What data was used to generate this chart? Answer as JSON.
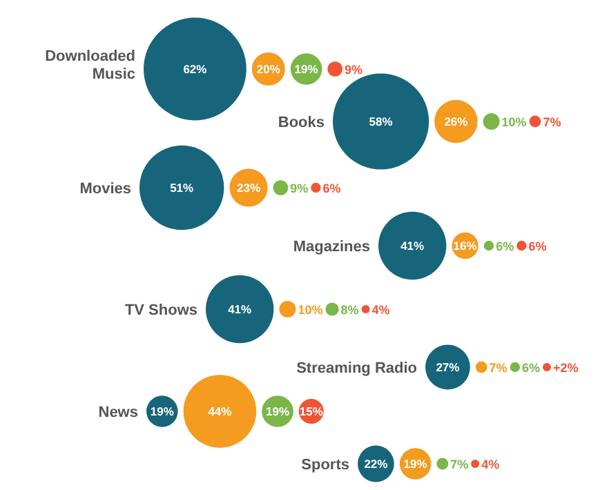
{
  "chart_data": {
    "type": "other",
    "categories": [
      "Downloaded Music",
      "Books",
      "Movies",
      "Magazines",
      "TV Shows",
      "Streaming Radio",
      "News",
      "Sports"
    ],
    "series": [
      {
        "color": "#17657a",
        "values": [
          62,
          58,
          51,
          41,
          41,
          27,
          19,
          22
        ],
        "value_labels": [
          "62%",
          "58%",
          "51%",
          "41%",
          "41%",
          "27%",
          "19%",
          "22%"
        ]
      },
      {
        "color": "#f49b20",
        "values": [
          20,
          26,
          23,
          16,
          10,
          7,
          44,
          19
        ],
        "value_labels": [
          "20%",
          "26%",
          "23%",
          "16%",
          "10%",
          "7%",
          "44%",
          "19%"
        ]
      },
      {
        "color": "#7ab648",
        "values": [
          19,
          10,
          9,
          6,
          8,
          6,
          19,
          7
        ],
        "value_labels": [
          "19%",
          "10%",
          "9%",
          "6%",
          "8%",
          "6%",
          "19%",
          "7%"
        ]
      },
      {
        "color": "#ef5535",
        "values": [
          9,
          7,
          6,
          6,
          4,
          2,
          15,
          4
        ],
        "value_labels": [
          "9%",
          "7%",
          "6%",
          "6%",
          "4%",
          "+2%",
          "15%",
          "4%"
        ]
      }
    ]
  }
}
